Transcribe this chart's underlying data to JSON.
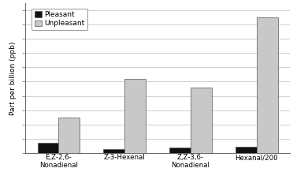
{
  "categories": [
    "E,Z-2,6-\nNonadienal",
    "Z-3-Hexenal",
    "Z,Z-3,6-\nNonadienal",
    "Hexanal/200"
  ],
  "pleasant_values": [
    0.7,
    0.25,
    0.35,
    0.45
  ],
  "unpleasant_values": [
    2.5,
    5.2,
    4.6,
    9.5
  ],
  "pleasant_color": "#111111",
  "unpleasant_color": "#c8c8c8",
  "bar_edge_color": "#555555",
  "ylabel": "Part per billion (ppb)",
  "legend_labels": [
    "Pleasant",
    "Unpleasant"
  ],
  "background_color": "#ffffff",
  "ylim": [
    0,
    10.5
  ],
  "bar_width": 0.32,
  "grid_color": "#d0d0d0",
  "ytick_count": 10,
  "spine_color": "#666666"
}
